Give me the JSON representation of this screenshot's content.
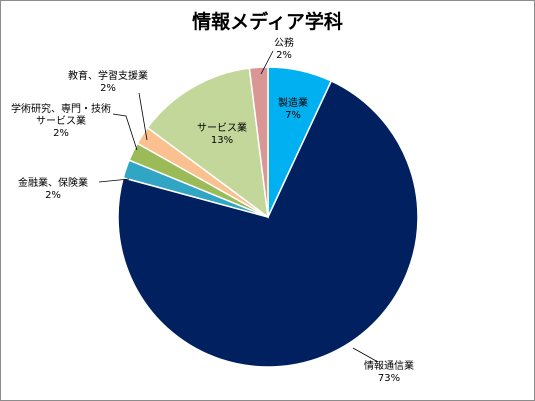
{
  "chart_data": {
    "type": "pie",
    "title": "情報メディア学科",
    "slices": [
      {
        "name": "製造業",
        "value": 7,
        "label": "7%",
        "color": "#00b0f0"
      },
      {
        "name": "情報通信業",
        "value": 73,
        "label": "73%",
        "color": "#002060"
      },
      {
        "name": "金融業、保険業",
        "value": 2,
        "label": "2%",
        "color": "#31a5c4"
      },
      {
        "name": "学術研究、専門・技術サービス業",
        "value": 2,
        "label": "2%",
        "color": "#9bbb59"
      },
      {
        "name": "教育、学習支援業",
        "value": 2,
        "label": "2%",
        "color": "#fac090"
      },
      {
        "name": "サービス業",
        "value": 13,
        "label": "13%",
        "color": "#c4d79b"
      },
      {
        "name": "公務",
        "value": 2,
        "label": "2%",
        "color": "#d99694"
      }
    ],
    "label_lines": {
      "0": [
        "製造業"
      ],
      "1": [
        "情報通信業"
      ],
      "2": [
        "金融業、保険業"
      ],
      "3": [
        "学術研究、専門・技術",
        "サービス業"
      ],
      "4": [
        "教育、学習支援業"
      ],
      "5": [
        "サービス業"
      ],
      "6": [
        "公務"
      ]
    }
  }
}
